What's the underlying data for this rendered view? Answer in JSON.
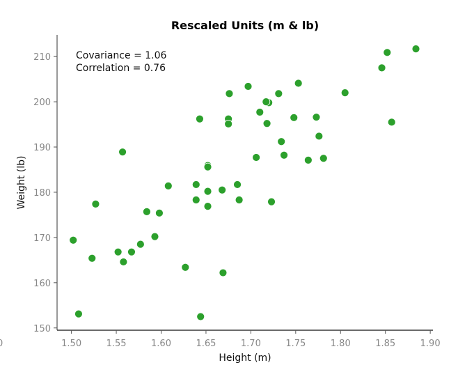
{
  "chart_data": {
    "type": "scatter",
    "title": "Rescaled Units (m & lb)",
    "xlabel": "Height (m)",
    "ylabel": "Weight (lb)",
    "xlim": [
      1.484,
      1.903
    ],
    "ylim": [
      149.5,
      214.8
    ],
    "xticks": [
      "1.50",
      "1.55",
      "1.60",
      "1.65",
      "1.70",
      "1.75",
      "1.80",
      "1.85",
      "1.90"
    ],
    "xtick_values": [
      1.5,
      1.55,
      1.6,
      1.65,
      1.7,
      1.75,
      1.8,
      1.85,
      1.9
    ],
    "clipped_left_tick": "0",
    "yticks": [
      "150",
      "160",
      "170",
      "180",
      "190",
      "200",
      "210"
    ],
    "ytick_values": [
      150,
      160,
      170,
      180,
      190,
      200,
      210
    ],
    "grid": false,
    "color": "#2ca02c",
    "annotations": [
      "Covariance = 1.06",
      "Correlation = 0.76"
    ],
    "points": [
      [
        1.502,
        169.4
      ],
      [
        1.508,
        153.1
      ],
      [
        1.523,
        165.4
      ],
      [
        1.527,
        177.4
      ],
      [
        1.552,
        166.8
      ],
      [
        1.557,
        188.9
      ],
      [
        1.558,
        164.6
      ],
      [
        1.567,
        166.8
      ],
      [
        1.577,
        168.5
      ],
      [
        1.584,
        175.7
      ],
      [
        1.593,
        170.2
      ],
      [
        1.598,
        175.4
      ],
      [
        1.608,
        181.4
      ],
      [
        1.627,
        163.4
      ],
      [
        1.639,
        181.7
      ],
      [
        1.639,
        178.3
      ],
      [
        1.643,
        196.2
      ],
      [
        1.644,
        152.5
      ],
      [
        1.652,
        185.9
      ],
      [
        1.652,
        185.6
      ],
      [
        1.652,
        180.2
      ],
      [
        1.652,
        176.9
      ],
      [
        1.668,
        180.5
      ],
      [
        1.669,
        162.2
      ],
      [
        1.676,
        201.8
      ],
      [
        1.675,
        196.2
      ],
      [
        1.675,
        195.1
      ],
      [
        1.685,
        181.7
      ],
      [
        1.687,
        178.3
      ],
      [
        1.697,
        203.4
      ],
      [
        1.706,
        187.7
      ],
      [
        1.71,
        197.7
      ],
      [
        1.72,
        199.8
      ],
      [
        1.717,
        200.0
      ],
      [
        1.718,
        195.2
      ],
      [
        1.723,
        177.9
      ],
      [
        1.731,
        201.8
      ],
      [
        1.734,
        191.2
      ],
      [
        1.737,
        188.2
      ],
      [
        1.748,
        196.5
      ],
      [
        1.753,
        204.1
      ],
      [
        1.764,
        187.1
      ],
      [
        1.773,
        196.6
      ],
      [
        1.776,
        192.4
      ],
      [
        1.781,
        187.5
      ],
      [
        1.805,
        202.0
      ],
      [
        1.846,
        207.5
      ],
      [
        1.852,
        210.9
      ],
      [
        1.857,
        195.5
      ],
      [
        1.884,
        211.7
      ]
    ]
  }
}
